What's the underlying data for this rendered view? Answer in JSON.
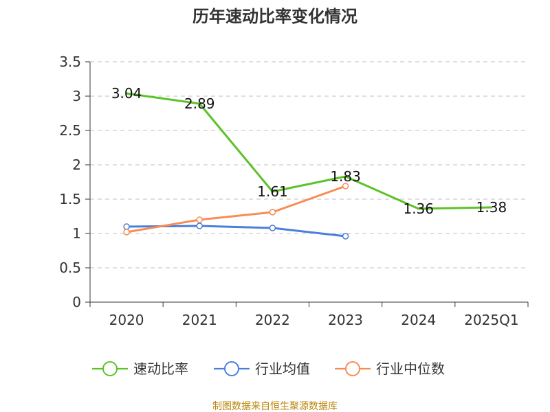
{
  "chart_data": {
    "type": "line",
    "title": "历年速动比率变化情况",
    "categories": [
      "2020",
      "2021",
      "2022",
      "2023",
      "2024",
      "2025Q1"
    ],
    "ylim": [
      0,
      3.5
    ],
    "yticks": [
      "0",
      "0.5",
      "1",
      "1.5",
      "2",
      "2.5",
      "3",
      "3.5"
    ],
    "grid": true,
    "legend_position": "bottom",
    "series": [
      {
        "name": "速动比率",
        "color": "#5bc227",
        "values": [
          3.04,
          2.89,
          1.61,
          1.83,
          1.36,
          1.38
        ],
        "labels": [
          "3.04",
          "2.89",
          "1.61",
          "1.83",
          "1.36",
          "1.38"
        ],
        "markers": false
      },
      {
        "name": "行业均值",
        "color": "#4a7fdb",
        "values": [
          1.1,
          1.11,
          1.08,
          0.96,
          null,
          null
        ],
        "markers": true
      },
      {
        "name": "行业中位数",
        "color": "#f78c54",
        "values": [
          1.02,
          1.2,
          1.31,
          1.69,
          null,
          null
        ],
        "markers": true
      }
    ],
    "source": "制图数据来自恒生聚源数据库"
  }
}
